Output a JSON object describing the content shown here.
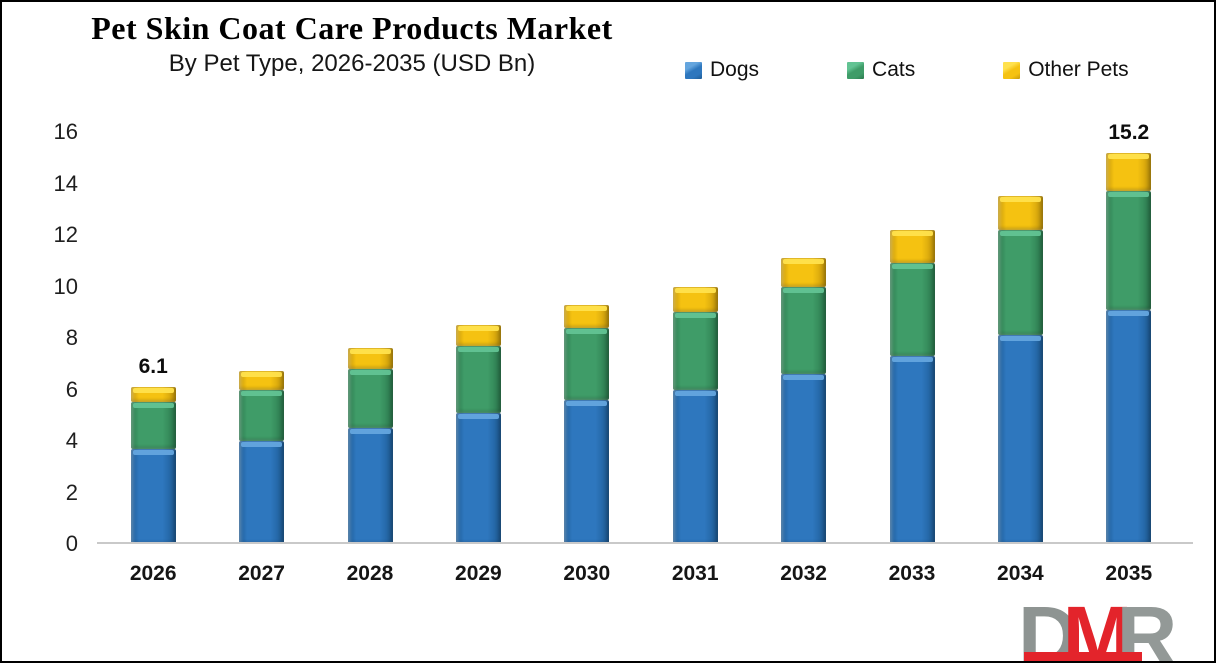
{
  "chart_data": {
    "type": "bar",
    "stacked": true,
    "title": "Pet Skin Coat Care Products Market",
    "subtitle": "By Pet Type, 2026-2035 (USD Bn)",
    "categories": [
      "2026",
      "2027",
      "2028",
      "2029",
      "2030",
      "2031",
      "2032",
      "2033",
      "2034",
      "2035"
    ],
    "series": [
      {
        "name": "Dogs",
        "values": [
          3.7,
          4.0,
          4.5,
          5.1,
          5.6,
          6.0,
          6.6,
          7.3,
          8.1,
          9.1
        ],
        "color": {
          "main": "#2E77BE",
          "light": "#64A5DE",
          "dark": "#1E5C96"
        }
      },
      {
        "name": "Cats",
        "values": [
          1.8,
          2.0,
          2.3,
          2.6,
          2.8,
          3.0,
          3.4,
          3.6,
          4.1,
          4.6
        ],
        "color": {
          "main": "#3F9C68",
          "light": "#62C393",
          "dark": "#2C7A4E"
        }
      },
      {
        "name": "Other Pets",
        "values": [
          0.6,
          0.7,
          0.8,
          0.8,
          0.9,
          1.0,
          1.1,
          1.3,
          1.3,
          1.5
        ],
        "color": {
          "main": "#F5C211",
          "light": "#FFE14D",
          "dark": "#C7990B"
        }
      }
    ],
    "totals": [
      6.1,
      6.7,
      7.6,
      8.5,
      9.3,
      10.0,
      11.1,
      12.2,
      13.5,
      15.2
    ],
    "total_labels": [
      "6.1",
      "",
      "",
      "",
      "",
      "",
      "",
      "",
      "",
      "15.2"
    ],
    "ylim": [
      0,
      16
    ],
    "yticks": [
      0,
      2,
      4,
      6,
      8,
      10,
      12,
      14,
      16
    ],
    "grid": false,
    "legend_position": "top-right",
    "axis_line_color": "#C9C9C9"
  },
  "logo": {
    "letters": [
      {
        "char": "D",
        "color": "#8E9492"
      },
      {
        "char": "M",
        "color": "#E3242B"
      },
      {
        "char": "R",
        "color": "#939997"
      }
    ],
    "bar_color": "#E3242B"
  }
}
